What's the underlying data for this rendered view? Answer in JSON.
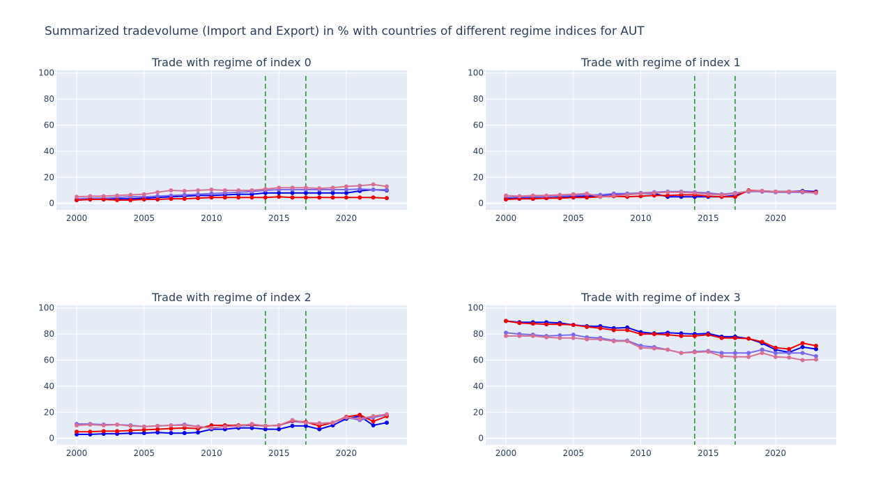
{
  "figure": {
    "title": "Summarized tradevolume (Import and Export) in % with countries of different regime indices for AUT"
  },
  "colors": {
    "plot_bg": "#e5ecf6",
    "grid": "#ffffff",
    "text": "#2a3f5f",
    "marker_line": "#008000"
  },
  "chart_data": [
    {
      "type": "line",
      "title": "Trade with regime of index 0",
      "xlim": [
        1998.5,
        2024.5
      ],
      "ylim": [
        -5,
        102
      ],
      "xticks": [
        2000,
        2005,
        2010,
        2015,
        2020
      ],
      "yticks": [
        0,
        20,
        40,
        60,
        80,
        100
      ],
      "vlines": [
        2014,
        2017
      ],
      "x": [
        2000,
        2001,
        2002,
        2003,
        2004,
        2005,
        2006,
        2007,
        2008,
        2009,
        2010,
        2011,
        2012,
        2013,
        2014,
        2015,
        2016,
        2017,
        2018,
        2019,
        2020,
        2021,
        2022,
        2023
      ],
      "series": [
        {
          "color": "#0000ee",
          "values": [
            2.5,
            3,
            3,
            3.5,
            3.5,
            4,
            4.5,
            5,
            5.5,
            6,
            6,
            6.5,
            7,
            7,
            8,
            8,
            8,
            8,
            8,
            8,
            8,
            9.5,
            10.5,
            10
          ]
        },
        {
          "color": "#7b68ee",
          "values": [
            3.5,
            4,
            4,
            4.5,
            5,
            5,
            5.5,
            6,
            6.5,
            7,
            7.5,
            8,
            8.5,
            9,
            10,
            10.5,
            10.5,
            10.5,
            10.5,
            10.5,
            10.5,
            11,
            10.5,
            10.5
          ]
        },
        {
          "color": "#ee0000",
          "values": [
            2.5,
            3,
            3,
            2.5,
            2.5,
            3,
            3,
            3.5,
            3.5,
            4,
            4.5,
            4.5,
            4.5,
            4.5,
            4.5,
            5,
            4.5,
            4.5,
            4.5,
            4.5,
            4.5,
            4.5,
            4.5,
            4
          ]
        },
        {
          "color": "#d87093",
          "values": [
            5,
            5.5,
            5.5,
            6,
            6.5,
            7,
            8.5,
            10,
            9.5,
            10,
            10.5,
            10,
            10,
            10,
            11,
            12,
            12,
            12,
            11.5,
            12,
            13,
            13.5,
            14.5,
            13
          ]
        }
      ]
    },
    {
      "type": "line",
      "title": "Trade with regime of index 1",
      "xlim": [
        1998.5,
        2024.5
      ],
      "ylim": [
        -5,
        102
      ],
      "xticks": [
        2000,
        2005,
        2010,
        2015,
        2020
      ],
      "yticks": [
        0,
        20,
        40,
        60,
        80,
        100
      ],
      "vlines": [
        2014,
        2017
      ],
      "x": [
        2000,
        2001,
        2002,
        2003,
        2004,
        2005,
        2006,
        2007,
        2008,
        2009,
        2010,
        2011,
        2012,
        2013,
        2014,
        2015,
        2016,
        2017,
        2018,
        2019,
        2020,
        2021,
        2022,
        2023
      ],
      "series": [
        {
          "color": "#0000ee",
          "values": [
            3.5,
            4,
            4,
            4,
            4.5,
            5,
            5.5,
            6,
            7,
            7,
            7.5,
            7.5,
            5,
            5,
            5,
            5,
            5,
            6,
            9.5,
            9.5,
            9,
            9,
            9.5,
            9
          ]
        },
        {
          "color": "#7b68ee",
          "values": [
            4.5,
            5,
            5,
            5,
            5.5,
            6,
            6.5,
            6.5,
            7.5,
            7.5,
            8,
            8.5,
            9,
            9,
            8.5,
            8,
            7,
            8,
            9,
            9,
            8.5,
            8.5,
            8.5,
            8
          ]
        },
        {
          "color": "#ee0000",
          "values": [
            3,
            3.5,
            3.5,
            4,
            4,
            4.5,
            4.5,
            5,
            5.5,
            5,
            5.5,
            6,
            6,
            6.5,
            6.5,
            5.5,
            5,
            5,
            10,
            9.5,
            9,
            9,
            9,
            8.5
          ]
        },
        {
          "color": "#d87093",
          "values": [
            6,
            5.5,
            6,
            6,
            6.5,
            7,
            7.5,
            5,
            6,
            6.5,
            7.5,
            8,
            8.5,
            8.5,
            8,
            7,
            6.5,
            7.5,
            9.5,
            9.5,
            9,
            9,
            9,
            8
          ]
        }
      ]
    },
    {
      "type": "line",
      "title": "Trade with regime of index 2",
      "xlim": [
        1998.5,
        2024.5
      ],
      "ylim": [
        -5,
        102
      ],
      "xticks": [
        2000,
        2005,
        2010,
        2015,
        2020
      ],
      "yticks": [
        0,
        20,
        40,
        60,
        80,
        100
      ],
      "vlines": [
        2014,
        2017
      ],
      "x": [
        2000,
        2001,
        2002,
        2003,
        2004,
        2005,
        2006,
        2007,
        2008,
        2009,
        2010,
        2011,
        2012,
        2013,
        2014,
        2015,
        2016,
        2017,
        2018,
        2019,
        2020,
        2021,
        2022,
        2023
      ],
      "series": [
        {
          "color": "#0000ee",
          "values": [
            3,
            3,
            3.5,
            3.5,
            4,
            4,
            4.5,
            4,
            4,
            4.5,
            7,
            7,
            8,
            8,
            7,
            7,
            9.5,
            9.5,
            7,
            10,
            15,
            17,
            10,
            12
          ]
        },
        {
          "color": "#7b68ee",
          "values": [
            11,
            11,
            10.5,
            10.5,
            10,
            9,
            9.5,
            10,
            10.5,
            9,
            8,
            9,
            9.5,
            10,
            9.5,
            10,
            13,
            12,
            11.5,
            12,
            16,
            14,
            16,
            18
          ]
        },
        {
          "color": "#ee0000",
          "values": [
            5,
            5,
            5.5,
            5.5,
            6,
            6.5,
            7,
            7.5,
            8,
            7.5,
            10,
            10,
            10,
            10.5,
            9.5,
            10,
            13.5,
            12.5,
            9.5,
            12,
            16.5,
            18,
            13,
            17
          ]
        },
        {
          "color": "#d87093",
          "values": [
            10,
            10.5,
            10,
            10.5,
            9.5,
            9,
            9.5,
            10,
            10,
            9,
            8,
            9,
            9.5,
            11,
            9.5,
            10,
            14,
            12,
            11.5,
            12,
            16,
            15,
            17,
            18.5
          ]
        }
      ]
    },
    {
      "type": "line",
      "title": "Trade with regime of index 3",
      "xlim": [
        1998.5,
        2024.5
      ],
      "ylim": [
        -5,
        102
      ],
      "xticks": [
        2000,
        2005,
        2010,
        2015,
        2020
      ],
      "yticks": [
        0,
        20,
        40,
        60,
        80,
        100
      ],
      "vlines": [
        2014,
        2017
      ],
      "x": [
        2000,
        2001,
        2002,
        2003,
        2004,
        2005,
        2006,
        2007,
        2008,
        2009,
        2010,
        2011,
        2012,
        2013,
        2014,
        2015,
        2016,
        2017,
        2018,
        2019,
        2020,
        2021,
        2022,
        2023
      ],
      "series": [
        {
          "color": "#0000ee",
          "values": [
            90,
            89,
            89,
            89,
            88.5,
            87,
            86,
            86,
            84.5,
            85,
            81.5,
            80.5,
            81,
            80.5,
            80,
            80.5,
            78,
            78,
            76.5,
            73,
            68,
            66,
            70,
            68.5
          ]
        },
        {
          "color": "#7b68ee",
          "values": [
            81,
            80,
            79.5,
            78.5,
            79,
            79.5,
            77.5,
            77,
            75,
            75,
            71,
            70,
            68,
            65.5,
            66.5,
            67,
            65.5,
            65.5,
            65.5,
            68,
            65.5,
            65.5,
            65.5,
            63
          ]
        },
        {
          "color": "#ee0000",
          "values": [
            90,
            88.5,
            88,
            87.5,
            87.5,
            87,
            85.5,
            84.5,
            83,
            83,
            80,
            80,
            79.5,
            78.5,
            78.5,
            79.5,
            77,
            77,
            76.5,
            74,
            69.5,
            68.5,
            73,
            71
          ]
        },
        {
          "color": "#d87093",
          "values": [
            78.5,
            78.5,
            78.5,
            77.5,
            77,
            77,
            76,
            76,
            74.5,
            74.5,
            69.5,
            69,
            68,
            65.5,
            66,
            66.5,
            63,
            62.5,
            62.5,
            65.5,
            62.5,
            62,
            60,
            60.5
          ]
        }
      ]
    }
  ]
}
